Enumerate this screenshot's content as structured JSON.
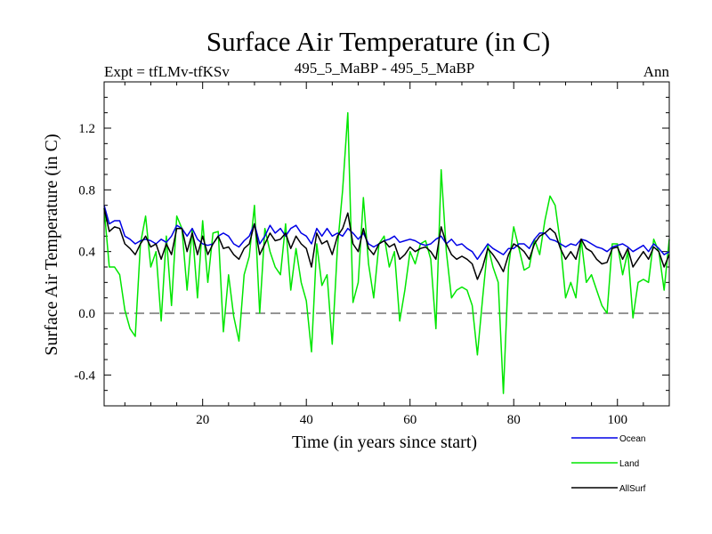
{
  "chart_data": {
    "type": "line",
    "title": "Surface Air Temperature (in C)",
    "left_subtitle": "Expt = tfLMv-tfKSv",
    "center_subtitle": "495_5_MaBP - 495_5_MaBP",
    "right_subtitle": "Ann",
    "xlabel": "Time (in years since start)",
    "ylabel": "Surface Air Temperature (in C)",
    "xlim": [
      1,
      110
    ],
    "ylim": [
      -0.6,
      1.5
    ],
    "xticks": [
      20,
      40,
      60,
      80,
      100
    ],
    "xtick_labels": [
      "20",
      "40",
      "60",
      "80",
      "100"
    ],
    "yticks": [
      -0.4,
      0.0,
      0.4,
      0.8,
      1.2
    ],
    "ytick_labels": [
      "-0.4",
      "0.0",
      "0.4",
      "0.8",
      "1.2"
    ],
    "reference_line": 0.0,
    "series": [
      {
        "name": "Land",
        "color": "#00e600",
        "values": [
          0.68,
          0.3,
          0.3,
          0.25,
          0.02,
          -0.1,
          -0.15,
          0.45,
          0.63,
          0.3,
          0.4,
          -0.05,
          0.5,
          0.05,
          0.63,
          0.55,
          0.15,
          0.55,
          0.1,
          0.6,
          0.2,
          0.52,
          0.53,
          -0.12,
          0.25,
          -0.02,
          -0.18,
          0.25,
          0.37,
          0.7,
          0.0,
          0.55,
          0.4,
          0.3,
          0.25,
          0.58,
          0.15,
          0.42,
          0.2,
          0.08,
          -0.25,
          0.45,
          0.18,
          0.25,
          -0.2,
          0.43,
          0.8,
          1.3,
          0.07,
          0.2,
          0.75,
          0.32,
          0.1,
          0.45,
          0.5,
          0.3,
          0.4,
          -0.05,
          0.15,
          0.4,
          0.32,
          0.45,
          0.47,
          0.35,
          -0.1,
          0.93,
          0.4,
          0.1,
          0.15,
          0.17,
          0.15,
          0.05,
          -0.27,
          0.1,
          0.44,
          0.3,
          0.2,
          -0.52,
          0.3,
          0.56,
          0.42,
          0.28,
          0.3,
          0.48,
          0.38,
          0.6,
          0.76,
          0.7,
          0.45,
          0.1,
          0.2,
          0.1,
          0.48,
          0.2,
          0.25,
          0.15,
          0.05,
          0.0,
          0.45,
          0.45,
          0.25,
          0.4,
          -0.03,
          0.2,
          0.22,
          0.2,
          0.48,
          0.4,
          0.15,
          0.48
        ]
      },
      {
        "name": "Ocean",
        "color": "#0000e6",
        "values": [
          0.7,
          0.58,
          0.6,
          0.6,
          0.5,
          0.48,
          0.45,
          0.47,
          0.48,
          0.47,
          0.45,
          0.48,
          0.46,
          0.5,
          0.57,
          0.55,
          0.5,
          0.55,
          0.48,
          0.45,
          0.44,
          0.45,
          0.5,
          0.52,
          0.5,
          0.45,
          0.43,
          0.47,
          0.5,
          0.58,
          0.45,
          0.5,
          0.57,
          0.52,
          0.55,
          0.5,
          0.55,
          0.57,
          0.52,
          0.5,
          0.45,
          0.55,
          0.5,
          0.55,
          0.5,
          0.52,
          0.5,
          0.55,
          0.52,
          0.48,
          0.52,
          0.45,
          0.43,
          0.45,
          0.47,
          0.48,
          0.5,
          0.46,
          0.47,
          0.48,
          0.47,
          0.45,
          0.44,
          0.45,
          0.48,
          0.5,
          0.45,
          0.48,
          0.44,
          0.45,
          0.42,
          0.4,
          0.35,
          0.4,
          0.45,
          0.42,
          0.4,
          0.38,
          0.42,
          0.42,
          0.45,
          0.45,
          0.42,
          0.48,
          0.52,
          0.52,
          0.48,
          0.47,
          0.45,
          0.43,
          0.45,
          0.44,
          0.48,
          0.47,
          0.45,
          0.43,
          0.42,
          0.4,
          0.43,
          0.44,
          0.45,
          0.43,
          0.4,
          0.42,
          0.44,
          0.4,
          0.45,
          0.42,
          0.38,
          0.4
        ]
      },
      {
        "name": "AllSurf",
        "color": "#000000",
        "values": [
          0.68,
          0.53,
          0.56,
          0.55,
          0.45,
          0.42,
          0.38,
          0.45,
          0.5,
          0.43,
          0.45,
          0.35,
          0.45,
          0.38,
          0.55,
          0.55,
          0.4,
          0.52,
          0.38,
          0.5,
          0.38,
          0.45,
          0.5,
          0.42,
          0.43,
          0.38,
          0.35,
          0.42,
          0.45,
          0.58,
          0.38,
          0.45,
          0.52,
          0.47,
          0.48,
          0.52,
          0.42,
          0.5,
          0.45,
          0.42,
          0.3,
          0.52,
          0.45,
          0.47,
          0.38,
          0.5,
          0.55,
          0.65,
          0.45,
          0.4,
          0.55,
          0.42,
          0.38,
          0.45,
          0.47,
          0.43,
          0.45,
          0.35,
          0.38,
          0.43,
          0.4,
          0.42,
          0.43,
          0.4,
          0.35,
          0.56,
          0.45,
          0.38,
          0.35,
          0.37,
          0.35,
          0.32,
          0.22,
          0.3,
          0.42,
          0.38,
          0.33,
          0.27,
          0.38,
          0.45,
          0.43,
          0.4,
          0.35,
          0.45,
          0.5,
          0.52,
          0.55,
          0.52,
          0.42,
          0.35,
          0.4,
          0.35,
          0.48,
          0.42,
          0.4,
          0.35,
          0.32,
          0.33,
          0.42,
          0.43,
          0.35,
          0.42,
          0.3,
          0.35,
          0.4,
          0.35,
          0.43,
          0.4,
          0.3,
          0.38
        ]
      }
    ],
    "legend": [
      {
        "name": "Ocean",
        "color": "#0000e6"
      },
      {
        "name": "Land",
        "color": "#00e600"
      },
      {
        "name": "AllSurf",
        "color": "#000000"
      }
    ],
    "legend_position": "bottom-right"
  }
}
